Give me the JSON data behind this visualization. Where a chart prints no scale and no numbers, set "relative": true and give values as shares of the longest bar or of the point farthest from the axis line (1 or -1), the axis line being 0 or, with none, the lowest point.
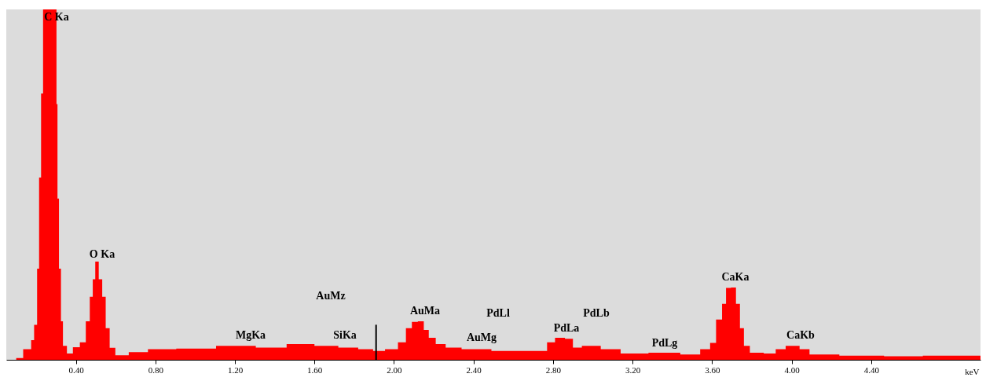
{
  "chart_data": {
    "type": "area",
    "xlabel": "keV",
    "relative": true,
    "color": "#ff0000",
    "xlim": [
      0.05,
      4.95
    ],
    "xticks": [
      {
        "value": 0.4,
        "label": "0.40"
      },
      {
        "value": 0.8,
        "label": "0.80"
      },
      {
        "value": 1.2,
        "label": "1.20"
      },
      {
        "value": 1.6,
        "label": "1.60"
      },
      {
        "value": 2.0,
        "label": "2.00"
      },
      {
        "value": 2.4,
        "label": "2.40"
      },
      {
        "value": 2.8,
        "label": "2.80"
      },
      {
        "value": 3.2,
        "label": "3.20"
      },
      {
        "value": 3.6,
        "label": "3.60"
      },
      {
        "value": 4.0,
        "label": "4.00"
      },
      {
        "value": 4.4,
        "label": "4.40"
      }
    ],
    "x": [
      0.1,
      0.17,
      0.18,
      0.2,
      0.21,
      0.22,
      0.23,
      0.24,
      0.3,
      0.305,
      0.31,
      0.32,
      0.33,
      0.34,
      0.37,
      0.4,
      0.44,
      0.46,
      0.48,
      0.49,
      0.505,
      0.525,
      0.54,
      0.56,
      0.58,
      0.617,
      0.715,
      0.81,
      1.0,
      1.21,
      1.4,
      1.52,
      1.68,
      1.76,
      1.88,
      1.91,
      2.0,
      2.04,
      2.08,
      2.1,
      2.14,
      2.16,
      2.19,
      2.23,
      2.29,
      2.39,
      2.59,
      2.75,
      2.79,
      2.83,
      2.89,
      2.91,
      2.98,
      3.1,
      3.18,
      3.38,
      3.5,
      3.58,
      3.6,
      3.64,
      3.66,
      3.68,
      3.71,
      3.73,
      3.75,
      3.77,
      3.81,
      3.91,
      3.93,
      4.01,
      4.07,
      4.11,
      4.37,
      4.56,
      4.76,
      4.95
    ],
    "values": [
      0.005,
      0.03,
      0.056,
      0.1,
      0.26,
      0.52,
      0.76,
      1.0,
      1.0,
      0.73,
      0.46,
      0.26,
      0.11,
      0.04,
      0.018,
      0.036,
      0.05,
      0.11,
      0.18,
      0.23,
      0.28,
      0.23,
      0.18,
      0.09,
      0.034,
      0.013,
      0.022,
      0.03,
      0.032,
      0.04,
      0.035,
      0.045,
      0.04,
      0.035,
      0.03,
      0.025,
      0.03,
      0.05,
      0.09,
      0.108,
      0.11,
      0.085,
      0.063,
      0.045,
      0.035,
      0.03,
      0.025,
      0.025,
      0.05,
      0.063,
      0.06,
      0.035,
      0.04,
      0.03,
      0.018,
      0.02,
      0.015,
      0.03,
      0.048,
      0.115,
      0.16,
      0.205,
      0.206,
      0.16,
      0.09,
      0.04,
      0.02,
      0.018,
      0.03,
      0.04,
      0.03,
      0.015,
      0.012,
      0.01,
      0.012,
      0.012
    ],
    "ref_lines": [
      {
        "axis": "x",
        "value": 1.91,
        "color": "#000000"
      }
    ],
    "annotations": [
      "C Ka",
      "O Ka",
      "MgKa",
      "AuMz",
      "SiKa",
      "AuMa",
      "PdLl",
      "AuMg",
      "PdLa",
      "PdLb",
      "PdLg",
      "CaKa",
      "CaKb"
    ]
  }
}
